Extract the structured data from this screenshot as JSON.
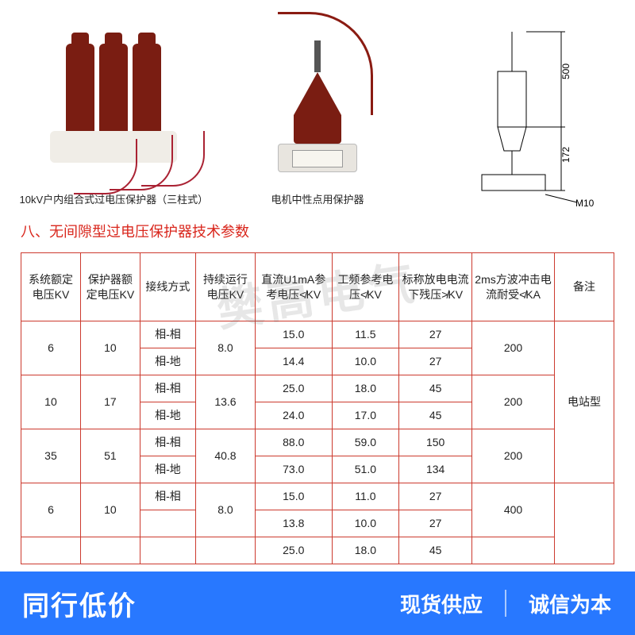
{
  "images": {
    "caption1": "10kV户内组合式过电压保护器（三柱式）",
    "caption2": "电机中性点用保护器",
    "dims": {
      "h_upper": "500",
      "h_lower": "172",
      "thread": "M10"
    }
  },
  "section_title": "八、无间隙型过电压保护器技术参数",
  "table": {
    "headers": [
      "系统额定电压KV",
      "保护器额定电压KV",
      "接线方式",
      "持续运行电压KV",
      "直流U1mA参考电压≮KV",
      "工频参考电压≮KV",
      "标称放电电流下残压≯KV",
      "2ms方波冲击电流耐受≮KA",
      "备注"
    ],
    "col_widths": [
      "60",
      "60",
      "56",
      "60",
      "76",
      "66",
      "72",
      "82",
      "58"
    ],
    "groups": [
      {
        "sys_kv": "6",
        "prot_kv": "10",
        "cont_kv": "8.0",
        "ms2": "200",
        "rows": [
          {
            "mode": "相-相",
            "dc": "15.0",
            "pf": "11.5",
            "res": "27"
          },
          {
            "mode": "相-地",
            "dc": "14.4",
            "pf": "10.0",
            "res": "27"
          }
        ]
      },
      {
        "sys_kv": "10",
        "prot_kv": "17",
        "cont_kv": "13.6",
        "ms2": "200",
        "rows": [
          {
            "mode": "相-相",
            "dc": "25.0",
            "pf": "18.0",
            "res": "45"
          },
          {
            "mode": "相-地",
            "dc": "24.0",
            "pf": "17.0",
            "res": "45"
          }
        ]
      },
      {
        "sys_kv": "35",
        "prot_kv": "51",
        "cont_kv": "40.8",
        "ms2": "200",
        "rows": [
          {
            "mode": "相-相",
            "dc": "88.0",
            "pf": "59.0",
            "res": "150"
          },
          {
            "mode": "相-地",
            "dc": "73.0",
            "pf": "51.0",
            "res": "134"
          }
        ]
      },
      {
        "sys_kv": "6",
        "prot_kv": "10",
        "cont_kv": "8.0",
        "ms2": "400",
        "rows": [
          {
            "mode": "相-相",
            "dc": "15.0",
            "pf": "11.0",
            "res": "27"
          },
          {
            "mode": "",
            "dc": "13.8",
            "pf": "10.0",
            "res": "27"
          }
        ]
      }
    ],
    "remark_span": "电站型",
    "tail_row": {
      "dc": "25.0",
      "pf": "18.0",
      "res": "45"
    }
  },
  "banner": {
    "big": "同行低价",
    "r1": "现货供应",
    "r2": "诚信为本"
  },
  "watermark": "樊高电气",
  "colors": {
    "accent_red": "#d9261c",
    "table_border": "#cc3a2e",
    "banner_bg": "#2878ff"
  }
}
